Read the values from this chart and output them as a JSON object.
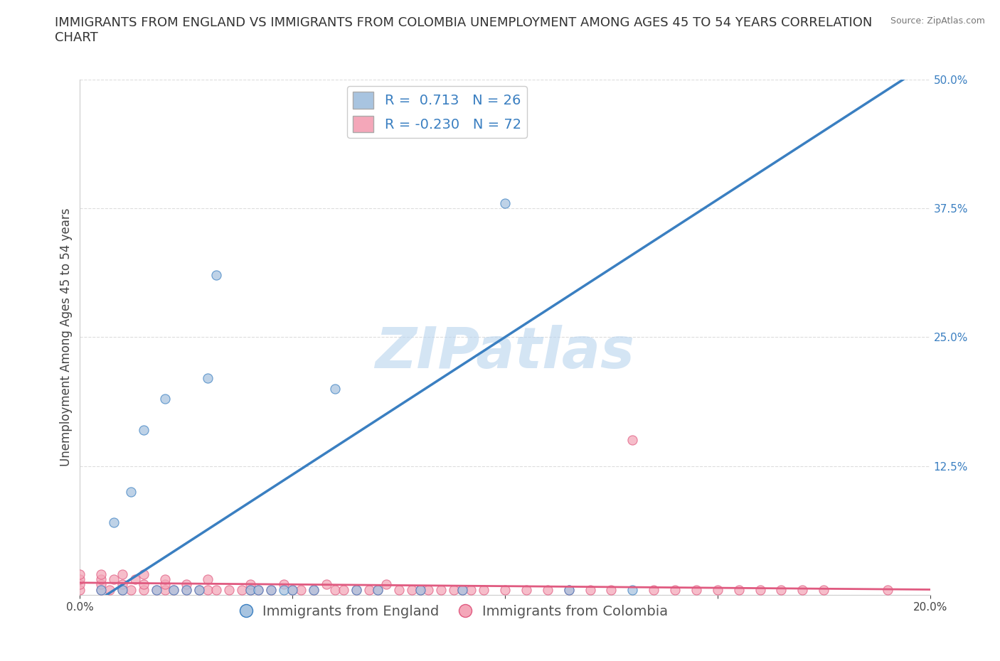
{
  "title": "IMMIGRANTS FROM ENGLAND VS IMMIGRANTS FROM COLOMBIA UNEMPLOYMENT AMONG AGES 45 TO 54 YEARS CORRELATION\nCHART",
  "source": "Source: ZipAtlas.com",
  "ylabel": "Unemployment Among Ages 45 to 54 years",
  "xlim": [
    0.0,
    0.2
  ],
  "ylim": [
    0.0,
    0.5
  ],
  "xticks": [
    0.0,
    0.05,
    0.1,
    0.15,
    0.2
  ],
  "yticks": [
    0.0,
    0.125,
    0.25,
    0.375,
    0.5
  ],
  "xticklabels": [
    "0.0%",
    "",
    "",
    "",
    "20.0%"
  ],
  "yticklabels_right": [
    "",
    "12.5%",
    "25.0%",
    "37.5%",
    "50.0%"
  ],
  "watermark": "ZIPatlas",
  "england_color": "#a8c4e0",
  "colombia_color": "#f4a7b9",
  "england_line_color": "#3a7fc1",
  "colombia_line_color": "#e05a80",
  "england_R": 0.713,
  "england_N": 26,
  "colombia_R": -0.23,
  "colombia_N": 72,
  "england_scatter_x": [
    0.005,
    0.008,
    0.01,
    0.012,
    0.015,
    0.018,
    0.02,
    0.022,
    0.025,
    0.028,
    0.03,
    0.032,
    0.04,
    0.042,
    0.045,
    0.048,
    0.05,
    0.055,
    0.06,
    0.065,
    0.07,
    0.08,
    0.09,
    0.1,
    0.115,
    0.13
  ],
  "england_scatter_y": [
    0.005,
    0.07,
    0.005,
    0.1,
    0.16,
    0.005,
    0.19,
    0.005,
    0.005,
    0.005,
    0.21,
    0.31,
    0.005,
    0.005,
    0.005,
    0.005,
    0.005,
    0.005,
    0.2,
    0.005,
    0.005,
    0.005,
    0.005,
    0.38,
    0.005,
    0.005
  ],
  "colombia_scatter_x": [
    0.0,
    0.0,
    0.0,
    0.0,
    0.005,
    0.005,
    0.005,
    0.005,
    0.007,
    0.008,
    0.01,
    0.01,
    0.01,
    0.012,
    0.013,
    0.015,
    0.015,
    0.015,
    0.018,
    0.02,
    0.02,
    0.02,
    0.022,
    0.025,
    0.025,
    0.028,
    0.03,
    0.03,
    0.032,
    0.035,
    0.038,
    0.04,
    0.04,
    0.042,
    0.045,
    0.048,
    0.05,
    0.052,
    0.055,
    0.058,
    0.06,
    0.062,
    0.065,
    0.068,
    0.07,
    0.072,
    0.075,
    0.078,
    0.08,
    0.082,
    0.085,
    0.088,
    0.09,
    0.092,
    0.095,
    0.1,
    0.105,
    0.11,
    0.115,
    0.12,
    0.125,
    0.13,
    0.135,
    0.14,
    0.145,
    0.15,
    0.155,
    0.16,
    0.165,
    0.17,
    0.175,
    0.19
  ],
  "colombia_scatter_y": [
    0.005,
    0.01,
    0.015,
    0.02,
    0.005,
    0.01,
    0.015,
    0.02,
    0.005,
    0.015,
    0.005,
    0.01,
    0.02,
    0.005,
    0.015,
    0.005,
    0.01,
    0.02,
    0.005,
    0.005,
    0.01,
    0.015,
    0.005,
    0.005,
    0.01,
    0.005,
    0.005,
    0.015,
    0.005,
    0.005,
    0.005,
    0.005,
    0.01,
    0.005,
    0.005,
    0.01,
    0.005,
    0.005,
    0.005,
    0.01,
    0.005,
    0.005,
    0.005,
    0.005,
    0.005,
    0.01,
    0.005,
    0.005,
    0.005,
    0.005,
    0.005,
    0.005,
    0.005,
    0.005,
    0.005,
    0.005,
    0.005,
    0.005,
    0.005,
    0.005,
    0.005,
    0.15,
    0.005,
    0.005,
    0.005,
    0.005,
    0.005,
    0.005,
    0.005,
    0.005,
    0.005,
    0.005
  ],
  "background_color": "#ffffff",
  "grid_color": "#dddddd",
  "title_fontsize": 13,
  "label_fontsize": 12,
  "tick_fontsize": 11,
  "legend_fontsize": 14
}
